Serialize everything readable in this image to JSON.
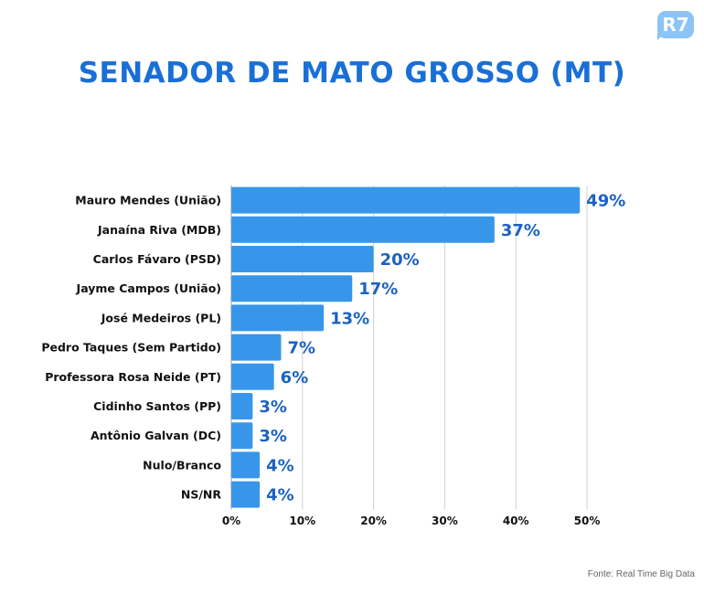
{
  "logo": "R7",
  "source": "Fonte: Real Time Big Data",
  "colors": {
    "bar": "#3896ea",
    "value": "#1b62c0",
    "title": "#1a6fd6",
    "grid": "#d0d0d0"
  },
  "chart_data": {
    "type": "bar",
    "orientation": "horizontal",
    "title": "SENADOR DE MATO GROSSO (MT)",
    "categories": [
      "Mauro Mendes (União)",
      "Janaína Riva (MDB)",
      "Carlos Fávaro (PSD)",
      "Jayme Campos (União)",
      "José Medeiros (PL)",
      "Pedro Taques (Sem Partido)",
      "Professora Rosa Neide (PT)",
      "Cidinho Santos (PP)",
      "Antônio Galvan (DC)",
      "Nulo/Branco",
      "NS/NR"
    ],
    "values": [
      49,
      37,
      20,
      17,
      13,
      7,
      6,
      3,
      3,
      4,
      4
    ],
    "value_labels": [
      "49%",
      "37%",
      "20%",
      "17%",
      "13%",
      "7%",
      "6%",
      "3%",
      "3%",
      "4%",
      "4%"
    ],
    "xlim": [
      0,
      50
    ],
    "xticks": [
      0,
      10,
      20,
      30,
      40,
      50
    ],
    "xtick_labels": [
      "0%",
      "10%",
      "20%",
      "30%",
      "40%",
      "50%"
    ],
    "grid": true,
    "xlabel": "",
    "ylabel": ""
  }
}
